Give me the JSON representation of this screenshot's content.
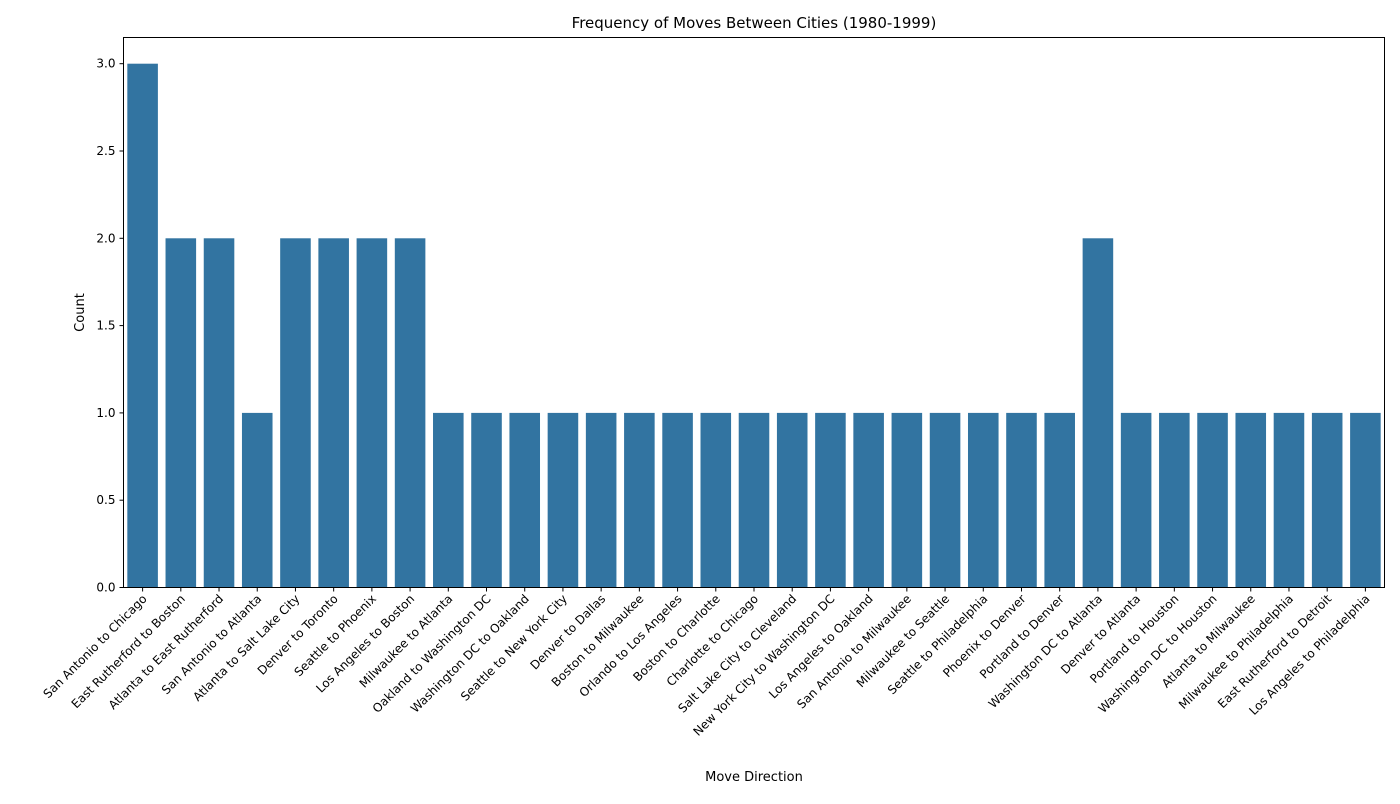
{
  "chart_data": {
    "type": "bar",
    "title": "Frequency of Moves Between Cities (1980-1999)",
    "xlabel": "Move Direction",
    "ylabel": "Count",
    "ylim": [
      0,
      3.15
    ],
    "yticks": [
      "0.0",
      "0.5",
      "1.0",
      "1.5",
      "2.0",
      "2.5",
      "3.0"
    ],
    "bar_color": "#3274a1",
    "grid": false,
    "categories": [
      "San Antonio to Chicago",
      "East Rutherford to Boston",
      "Atlanta to East Rutherford",
      "San Antonio to Atlanta",
      "Atlanta to Salt Lake City",
      "Denver to Toronto",
      "Seattle to Phoenix",
      "Los Angeles to Boston",
      "Milwaukee to Atlanta",
      "Oakland to Washington DC",
      "Washington DC to Oakland",
      "Seattle to New York City",
      "Denver to Dallas",
      "Boston to Milwaukee",
      "Orlando to Los Angeles",
      "Boston to Charlotte",
      "Charlotte to Chicago",
      "Salt Lake City to Cleveland",
      "New York City to Washington DC",
      "Los Angeles to Oakland",
      "San Antonio to Milwaukee",
      "Milwaukee to Seattle",
      "Seattle to Philadelphia",
      "Phoenix to Denver",
      "Portland to Denver",
      "Washington DC to Atlanta",
      "Denver to Atlanta",
      "Portland to Houston",
      "Washington DC to Houston",
      "Atlanta to Milwaukee",
      "Milwaukee to Philadelphia",
      "East Rutherford to Detroit",
      "Los Angeles to Philadelphia"
    ],
    "values": [
      3,
      2,
      2,
      1,
      2,
      2,
      2,
      2,
      1,
      1,
      1,
      1,
      1,
      1,
      1,
      1,
      1,
      1,
      1,
      1,
      1,
      1,
      1,
      1,
      1,
      2,
      1,
      1,
      1,
      1,
      1,
      1,
      1
    ]
  }
}
